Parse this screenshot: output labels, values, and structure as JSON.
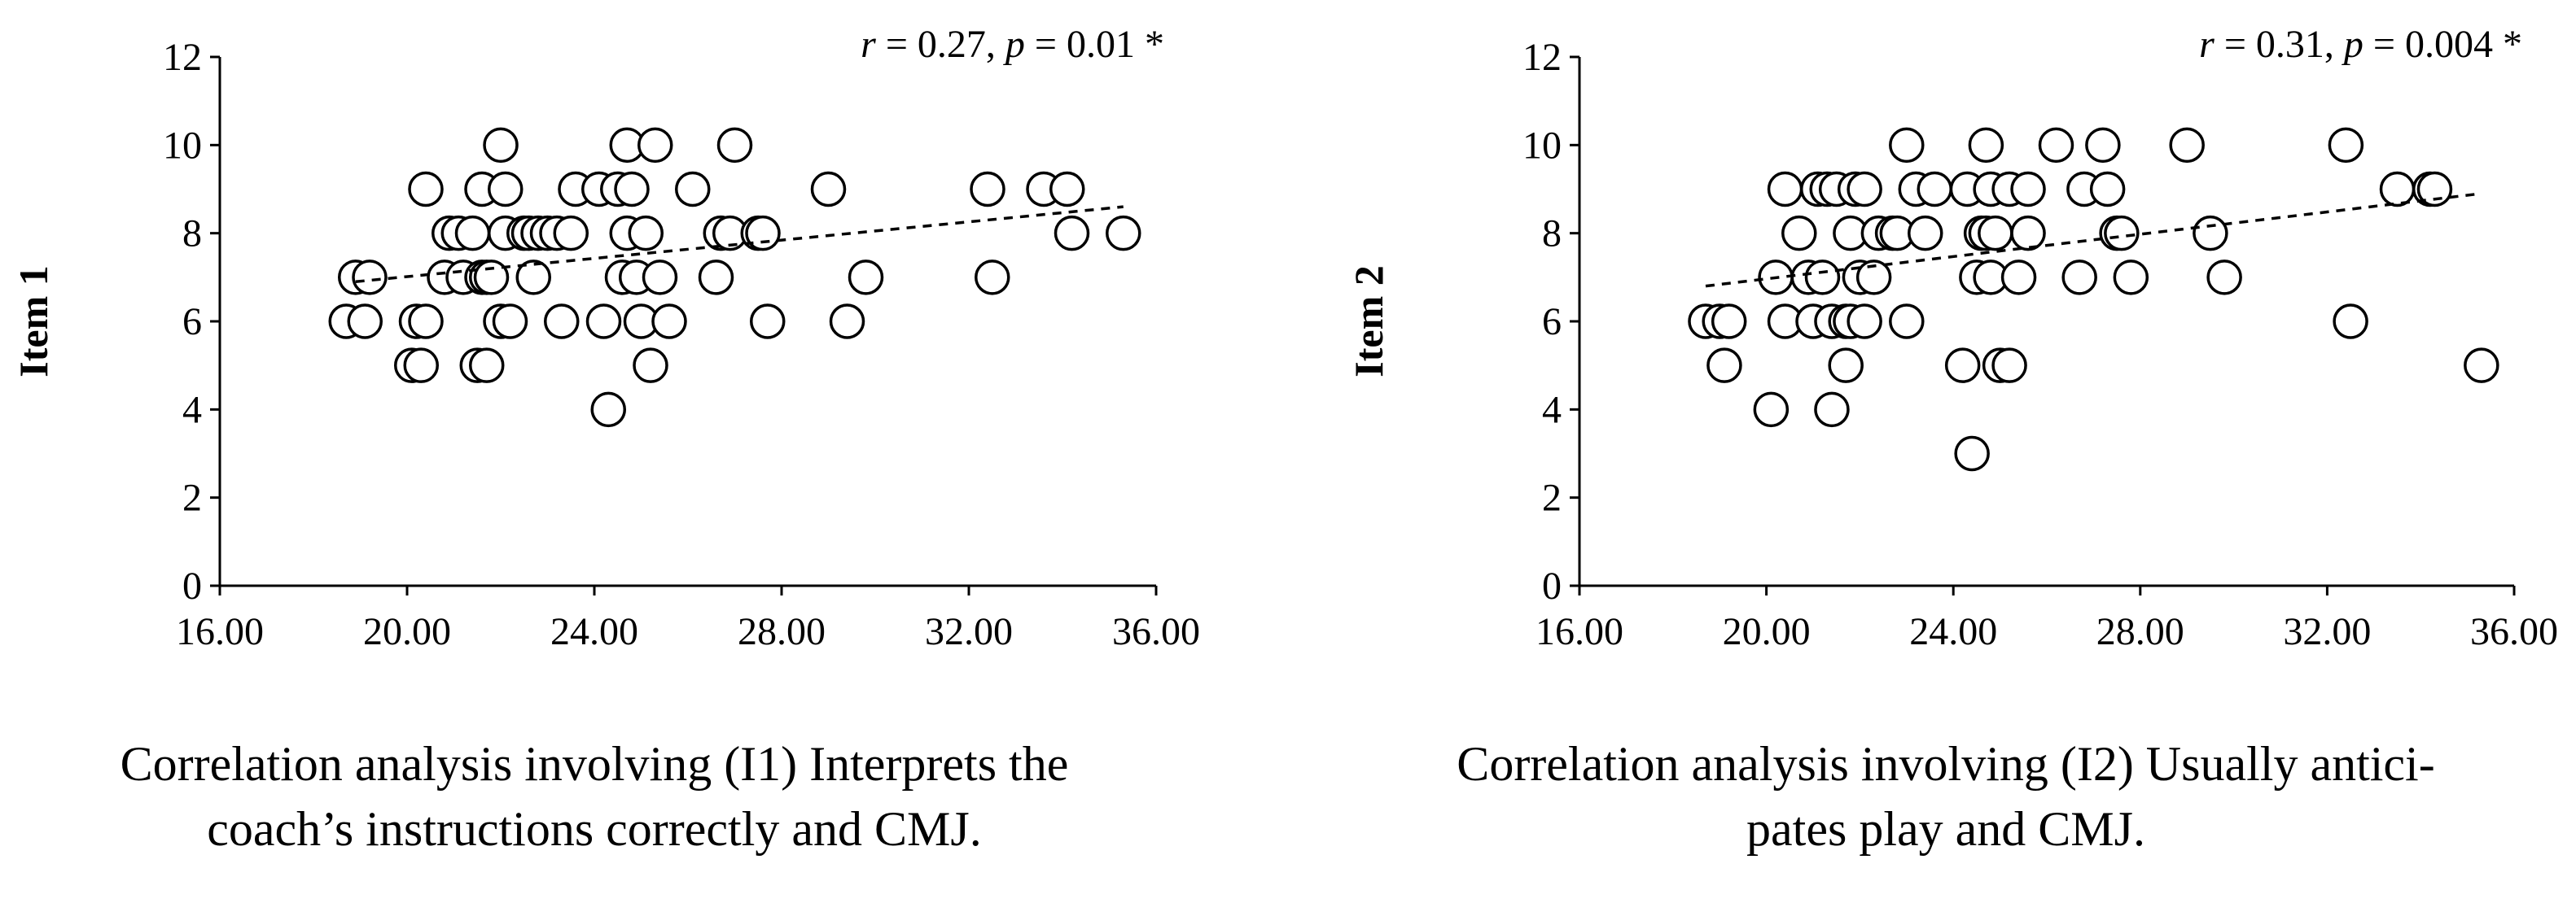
{
  "chart_data": [
    {
      "type": "scatter",
      "ylabel": "Item 1",
      "xlabel": "",
      "xlim": [
        16,
        36
      ],
      "ylim": [
        0,
        12
      ],
      "xticks": [
        "16.00",
        "20.00",
        "24.00",
        "28.00",
        "32.00",
        "36.00"
      ],
      "yticks": [
        "0",
        "2",
        "4",
        "6",
        "8",
        "10",
        "12"
      ],
      "annotation": {
        "r_label": "r",
        "r_rest": " = 0.27, ",
        "p_label": "p",
        "p_rest": " = 0.01 *"
      },
      "trendline": {
        "x": [
          18.9,
          35.3
        ],
        "y": [
          6.9,
          8.6
        ]
      },
      "points": [
        [
          18.9,
          7
        ],
        [
          19.2,
          7
        ],
        [
          18.7,
          6
        ],
        [
          19.1,
          6
        ],
        [
          20.1,
          5
        ],
        [
          20.3,
          5
        ],
        [
          20.2,
          6
        ],
        [
          20.4,
          6
        ],
        [
          20.4,
          9
        ],
        [
          20.8,
          7
        ],
        [
          20.9,
          8
        ],
        [
          21.1,
          8
        ],
        [
          21.2,
          7
        ],
        [
          21.4,
          8
        ],
        [
          21.6,
          9
        ],
        [
          21.6,
          7
        ],
        [
          21.7,
          7
        ],
        [
          21.5,
          5
        ],
        [
          21.7,
          5
        ],
        [
          21.8,
          7
        ],
        [
          22.0,
          6
        ],
        [
          22.0,
          10
        ],
        [
          22.1,
          9
        ],
        [
          22.1,
          8
        ],
        [
          22.2,
          6
        ],
        [
          22.5,
          8
        ],
        [
          22.6,
          8
        ],
        [
          22.7,
          7
        ],
        [
          22.8,
          8
        ],
        [
          23.0,
          8
        ],
        [
          23.2,
          8
        ],
        [
          23.3,
          6
        ],
        [
          23.5,
          8
        ],
        [
          23.6,
          9
        ],
        [
          24.1,
          9
        ],
        [
          24.2,
          6
        ],
        [
          24.3,
          4
        ],
        [
          24.5,
          9
        ],
        [
          24.6,
          7
        ],
        [
          24.7,
          10
        ],
        [
          24.7,
          8
        ],
        [
          24.8,
          9
        ],
        [
          24.9,
          7
        ],
        [
          25.0,
          6
        ],
        [
          25.1,
          8
        ],
        [
          25.2,
          5
        ],
        [
          25.4,
          7
        ],
        [
          25.3,
          10
        ],
        [
          25.6,
          6
        ],
        [
          26.1,
          9
        ],
        [
          26.6,
          7
        ],
        [
          26.7,
          8
        ],
        [
          26.9,
          8
        ],
        [
          27.0,
          10
        ],
        [
          27.5,
          8
        ],
        [
          27.6,
          8
        ],
        [
          27.7,
          6
        ],
        [
          29.0,
          9
        ],
        [
          29.4,
          6
        ],
        [
          29.8,
          7
        ],
        [
          32.4,
          9
        ],
        [
          32.5,
          7
        ],
        [
          33.6,
          9
        ],
        [
          34.1,
          9
        ],
        [
          34.2,
          8
        ],
        [
          35.3,
          8
        ]
      ],
      "caption": [
        "Correlation analysis involving (I1) Interprets the",
        "coach’s instructions correctly and CMJ."
      ]
    },
    {
      "type": "scatter",
      "ylabel": "Item 2",
      "xlabel": "",
      "xlim": [
        16,
        36
      ],
      "ylim": [
        0,
        12
      ],
      "xticks": [
        "16.00",
        "20.00",
        "24.00",
        "28.00",
        "32.00",
        "36.00"
      ],
      "yticks": [
        "0",
        "2",
        "4",
        "6",
        "8",
        "10",
        "12"
      ],
      "annotation": {
        "r_label": "r",
        "r_rest": " = 0.31, ",
        "p_label": "p",
        "p_rest": " = 0.004 *"
      },
      "trendline": {
        "x": [
          18.7,
          35.3
        ],
        "y": [
          6.8,
          8.9
        ]
      },
      "points": [
        [
          18.7,
          6
        ],
        [
          19.0,
          6
        ],
        [
          19.2,
          6
        ],
        [
          19.1,
          5
        ],
        [
          20.1,
          4
        ],
        [
          20.2,
          7
        ],
        [
          20.4,
          6
        ],
        [
          20.4,
          9
        ],
        [
          20.7,
          8
        ],
        [
          20.9,
          7
        ],
        [
          21.0,
          6
        ],
        [
          21.1,
          9
        ],
        [
          21.2,
          7
        ],
        [
          21.3,
          9
        ],
        [
          21.4,
          6
        ],
        [
          21.4,
          4
        ],
        [
          21.5,
          9
        ],
        [
          21.7,
          6
        ],
        [
          21.7,
          5
        ],
        [
          21.8,
          6
        ],
        [
          21.8,
          8
        ],
        [
          21.9,
          9
        ],
        [
          22.0,
          7
        ],
        [
          22.1,
          6
        ],
        [
          22.1,
          9
        ],
        [
          22.3,
          7
        ],
        [
          22.4,
          8
        ],
        [
          22.7,
          8
        ],
        [
          22.8,
          8
        ],
        [
          23.0,
          10
        ],
        [
          23.0,
          6
        ],
        [
          23.2,
          9
        ],
        [
          23.4,
          8
        ],
        [
          23.6,
          9
        ],
        [
          24.2,
          5
        ],
        [
          24.3,
          9
        ],
        [
          24.4,
          3
        ],
        [
          24.5,
          7
        ],
        [
          24.6,
          8
        ],
        [
          24.7,
          8
        ],
        [
          24.7,
          10
        ],
        [
          24.8,
          9
        ],
        [
          24.8,
          7
        ],
        [
          24.9,
          8
        ],
        [
          25.0,
          5
        ],
        [
          25.2,
          5
        ],
        [
          25.2,
          9
        ],
        [
          25.4,
          7
        ],
        [
          25.6,
          9
        ],
        [
          25.6,
          8
        ],
        [
          26.2,
          10
        ],
        [
          26.7,
          7
        ],
        [
          26.8,
          9
        ],
        [
          27.2,
          10
        ],
        [
          27.3,
          9
        ],
        [
          27.5,
          8
        ],
        [
          27.6,
          8
        ],
        [
          27.8,
          7
        ],
        [
          29.0,
          10
        ],
        [
          29.5,
          8
        ],
        [
          29.8,
          7
        ],
        [
          32.4,
          10
        ],
        [
          32.5,
          6
        ],
        [
          33.5,
          9
        ],
        [
          34.2,
          9
        ],
        [
          34.3,
          9
        ],
        [
          35.3,
          5
        ]
      ],
      "caption": [
        "Correlation analysis involving (I2) Usually antici-",
        "pates play and CMJ."
      ]
    }
  ]
}
